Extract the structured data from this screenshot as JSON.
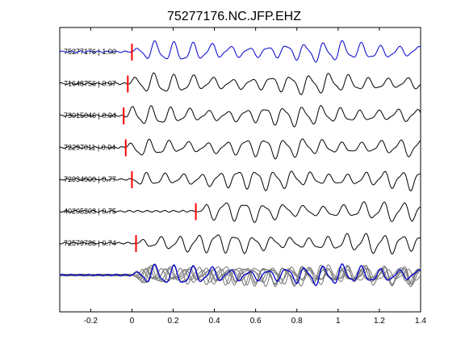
{
  "chart_data": {
    "type": "line",
    "title": "75277176.NC.JFP.EHZ",
    "xlabel": "",
    "ylabel": "",
    "xlim": [
      -0.35,
      1.4
    ],
    "xticks": [
      -0.2,
      0,
      0.2,
      0.4,
      0.6,
      0.8,
      1,
      1.2,
      1.4
    ],
    "xtick_labels": [
      "-0.2",
      "0",
      "0.2",
      "0.4",
      "0.6",
      "0.8",
      "1",
      "1.2",
      "1.4"
    ],
    "grid": false,
    "legend": "none",
    "colors": {
      "reference": "#0000cc",
      "trace": "#000000",
      "pick": "#ff0000",
      "stack": "#777777"
    },
    "traces": [
      {
        "label": "75277176 | 1.00",
        "pick_time": 0.0,
        "color": "#0000cc",
        "freq": 11.0,
        "phase": 0.0
      },
      {
        "label": "71648756 | 0.97",
        "pick_time": -0.02,
        "color": "#000000",
        "freq": 10.6,
        "phase": 0.6
      },
      {
        "label": "73015046 | 0.94",
        "pick_time": -0.04,
        "color": "#000000",
        "freq": 10.9,
        "phase": 1.3
      },
      {
        "label": "72297011 | 0.94",
        "pick_time": -0.03,
        "color": "#000000",
        "freq": 10.7,
        "phase": 2.1
      },
      {
        "label": "72934000 | 0.77",
        "pick_time": 0.0,
        "color": "#000000",
        "freq": 11.3,
        "phase": 2.8
      },
      {
        "label": "40205203 | 0.75",
        "pick_time": 0.31,
        "color": "#000000",
        "freq": 10.4,
        "phase": 3.6
      },
      {
        "label": "72579786 | 0.74",
        "pick_time": 0.02,
        "color": "#000000",
        "freq": 11.1,
        "phase": 4.4
      }
    ],
    "stack": {
      "label": "",
      "count": 7
    }
  }
}
